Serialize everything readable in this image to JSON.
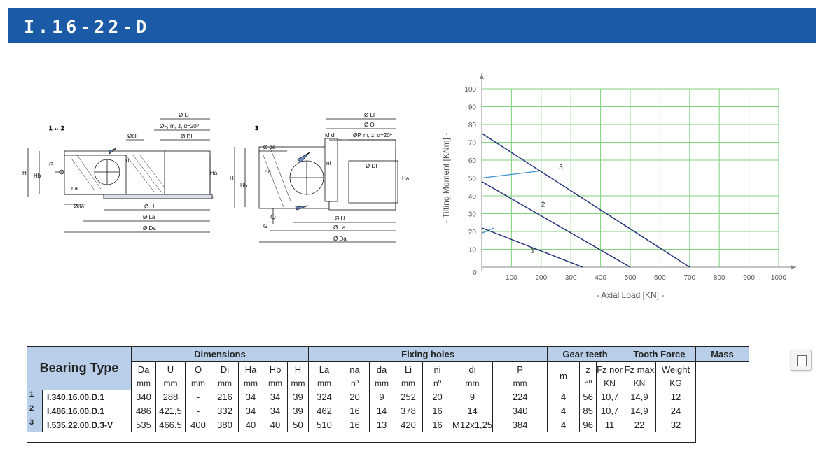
{
  "banner": {
    "title": "I.16-22-D"
  },
  "drawings": {
    "left": {
      "caption": "1 ↔ 2",
      "labels": {
        "li": "Ø Li",
        "p": "ØP, m, z, α=20º",
        "dl": "Ø DI",
        "di": "ØdI",
        "ni": "ni",
        "na": "na",
        "g": "G",
        "da": "Øda",
        "u": "Ø U",
        "la": "Ø La",
        "da_big": "Ø Da",
        "h": "H",
        "hb": "Hb",
        "ha": "Ha"
      }
    },
    "right": {
      "caption": "3",
      "labels": {
        "li": "Ø LI",
        "o": "Ø O",
        "p": "ØP, m, z, α=20º",
        "mdi": "M di",
        "dl": "Ø DI",
        "da": "Ø da",
        "ni": "ni",
        "na": "na",
        "g": "G",
        "u": "Ø U",
        "la": "Ø La",
        "da_big": "Ø Da",
        "h": "H",
        "hb": "Hb",
        "ha": "Ha"
      }
    }
  },
  "chart_data": {
    "type": "line",
    "xlabel": "-  Axial Load  [KN]  -",
    "ylabel": "-  Tilting Moment  [KNm]  -",
    "xlim": [
      0,
      1000
    ],
    "ylim": [
      0,
      100
    ],
    "x_ticks": [
      0,
      100,
      200,
      300,
      400,
      500,
      600,
      700,
      800,
      900,
      1000
    ],
    "y_ticks": [
      10,
      20,
      30,
      40,
      50,
      60,
      70,
      80,
      90,
      100
    ],
    "grid": true,
    "grid_color": "#7fd27f",
    "series": [
      {
        "name": "1",
        "color": "#1c2a7a",
        "x": [
          0,
          340
        ],
        "y": [
          22,
          0
        ]
      },
      {
        "name": "2",
        "color": "#1c2a7a",
        "x": [
          0,
          500
        ],
        "y": [
          48,
          0
        ]
      },
      {
        "name": "3",
        "color": "#1c2a7a",
        "x": [
          0,
          700
        ],
        "y": [
          75,
          0
        ]
      }
    ],
    "load_lines": [
      {
        "color": "#3a8fd0",
        "x": [
          0,
          40
        ],
        "y": [
          19,
          22
        ]
      },
      {
        "color": "#3a8fd0",
        "x": [
          0,
          200
        ],
        "y": [
          50,
          54
        ]
      }
    ]
  },
  "table": {
    "bearing_type": "Bearing Type",
    "groups": [
      "Dimensions",
      "Fixing holes",
      "Gear teeth",
      "Tooth Force",
      "Mass"
    ],
    "columns": [
      {
        "label": "Da",
        "unit": "mm"
      },
      {
        "label": "U",
        "unit": "mm"
      },
      {
        "label": "O",
        "unit": "mm"
      },
      {
        "label": "Di",
        "unit": "mm"
      },
      {
        "label": "Ha",
        "unit": "mm"
      },
      {
        "label": "Hb",
        "unit": "mm"
      },
      {
        "label": "H",
        "unit": "mm"
      },
      {
        "label": "La",
        "unit": "mm"
      },
      {
        "label": "na",
        "unit": "nº"
      },
      {
        "label": "da",
        "unit": "mm"
      },
      {
        "label": "Li",
        "unit": "mm"
      },
      {
        "label": "ni",
        "unit": "nº"
      },
      {
        "label": "di",
        "unit": "mm"
      },
      {
        "label": "P",
        "unit": "mm"
      },
      {
        "label": "m",
        "unit": ""
      },
      {
        "label": "z",
        "unit": "nº"
      },
      {
        "label": "Fz nor",
        "unit": "KN"
      },
      {
        "label": "Fz max",
        "unit": "KN"
      },
      {
        "label": "Weight",
        "unit": "KG"
      }
    ],
    "rows": [
      {
        "num": "1",
        "type": "I.340.16.00.D.1",
        "cells": [
          "340",
          "288",
          "-",
          "216",
          "34",
          "34",
          "39",
          "324",
          "20",
          "9",
          "252",
          "20",
          "9",
          "224",
          "4",
          "56",
          "10,7",
          "14,9",
          "12"
        ]
      },
      {
        "num": "2",
        "type": "I.486.16.00.D.1",
        "cells": [
          "486",
          "421,5",
          "-",
          "332",
          "34",
          "34",
          "39",
          "462",
          "16",
          "14",
          "378",
          "16",
          "14",
          "340",
          "4",
          "85",
          "10,7",
          "14,9",
          "24"
        ]
      },
      {
        "num": "3",
        "type": "I.535.22.00.D.3-V",
        "cells": [
          "535",
          "466.5",
          "400",
          "380",
          "40",
          "40",
          "50",
          "510",
          "16",
          "13",
          "420",
          "16",
          "M12x1,25",
          "384",
          "4",
          "96",
          "11",
          "22",
          "32"
        ]
      }
    ]
  },
  "toolbar": {
    "calculator_icon": "calculator-icon"
  }
}
